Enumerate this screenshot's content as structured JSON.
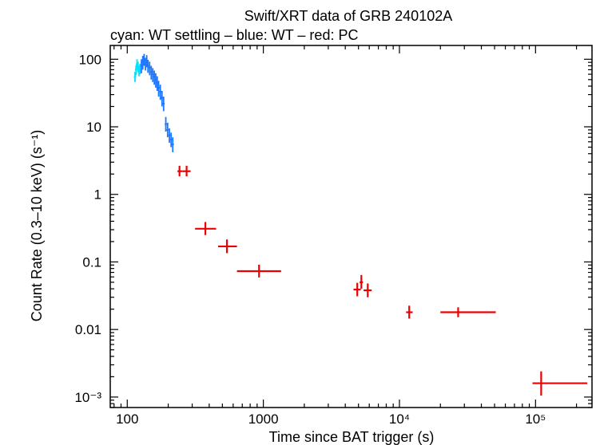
{
  "chart_data": {
    "type": "scatter",
    "title": "Swift/XRT data of GRB 240102A",
    "subtitle": "cyan: WT settling – blue: WT – red: PC",
    "xlabel": "Time since BAT trigger (s)",
    "ylabel": "Count Rate (0.3–10 keV) (s⁻¹)",
    "xscale": "log",
    "yscale": "log",
    "xlim": [
      75,
      260000
    ],
    "ylim": [
      0.0007,
      160
    ],
    "x_ticks": [
      {
        "value": 100,
        "label": "100"
      },
      {
        "value": 1000,
        "label": "1000"
      },
      {
        "value": 10000,
        "label": "10⁴"
      },
      {
        "value": 100000,
        "label": "10⁵"
      }
    ],
    "y_ticks": [
      {
        "value": 100,
        "label": "100"
      },
      {
        "value": 10,
        "label": "10"
      },
      {
        "value": 1,
        "label": "1"
      },
      {
        "value": 0.1,
        "label": "0.1"
      },
      {
        "value": 0.01,
        "label": "0.01"
      },
      {
        "value": 0.001,
        "label": "10⁻³"
      }
    ],
    "series": [
      {
        "color": "#00e0ff",
        "points": [
          {
            "x": 114,
            "y": 55,
            "ylo": 46,
            "yhi": 65
          },
          {
            "x": 116,
            "y": 70,
            "ylo": 58,
            "yhi": 82
          },
          {
            "x": 118,
            "y": 85,
            "ylo": 70,
            "yhi": 100
          },
          {
            "x": 120,
            "y": 78,
            "ylo": 64,
            "yhi": 92
          },
          {
            "x": 122,
            "y": 68,
            "ylo": 56,
            "yhi": 80
          },
          {
            "x": 124,
            "y": 72,
            "ylo": 60,
            "yhi": 86
          }
        ]
      },
      {
        "color": "#1e78ff",
        "points": [
          {
            "x": 127,
            "y": 80,
            "ylo": 62,
            "yhi": 100
          },
          {
            "x": 130,
            "y": 90,
            "ylo": 70,
            "yhi": 112
          },
          {
            "x": 133,
            "y": 100,
            "ylo": 80,
            "yhi": 120
          },
          {
            "x": 136,
            "y": 85,
            "ylo": 68,
            "yhi": 105
          },
          {
            "x": 139,
            "y": 95,
            "ylo": 76,
            "yhi": 115
          },
          {
            "x": 142,
            "y": 80,
            "ylo": 63,
            "yhi": 98
          },
          {
            "x": 146,
            "y": 75,
            "ylo": 58,
            "yhi": 92
          },
          {
            "x": 150,
            "y": 65,
            "ylo": 50,
            "yhi": 80
          },
          {
            "x": 154,
            "y": 60,
            "ylo": 46,
            "yhi": 74
          },
          {
            "x": 158,
            "y": 55,
            "ylo": 42,
            "yhi": 68
          },
          {
            "x": 162,
            "y": 50,
            "ylo": 38,
            "yhi": 62
          },
          {
            "x": 166,
            "y": 45,
            "ylo": 34,
            "yhi": 56
          },
          {
            "x": 170,
            "y": 38,
            "ylo": 28,
            "yhi": 48
          },
          {
            "x": 175,
            "y": 33,
            "ylo": 25,
            "yhi": 42
          },
          {
            "x": 180,
            "y": 27,
            "ylo": 20,
            "yhi": 34
          },
          {
            "x": 185,
            "y": 22,
            "ylo": 17,
            "yhi": 28
          },
          {
            "x": 192,
            "y": 11,
            "ylo": 8.5,
            "yhi": 14
          },
          {
            "x": 198,
            "y": 9,
            "ylo": 7,
            "yhi": 11.5
          },
          {
            "x": 204,
            "y": 7.5,
            "ylo": 5.8,
            "yhi": 9.5
          },
          {
            "x": 210,
            "y": 6.5,
            "ylo": 5,
            "yhi": 8.2
          },
          {
            "x": 216,
            "y": 5.5,
            "ylo": 4.2,
            "yhi": 7
          }
        ]
      },
      {
        "color": "#ee0000",
        "points": [
          {
            "x": 242,
            "y": 2.2,
            "xlo": 234,
            "xhi": 256,
            "ylo": 1.85,
            "yhi": 2.65
          },
          {
            "x": 273,
            "y": 2.2,
            "xlo": 256,
            "xhi": 292,
            "ylo": 1.85,
            "yhi": 2.65
          },
          {
            "x": 375,
            "y": 0.31,
            "xlo": 315,
            "xhi": 450,
            "ylo": 0.25,
            "yhi": 0.39
          },
          {
            "x": 540,
            "y": 0.17,
            "xlo": 465,
            "xhi": 640,
            "ylo": 0.135,
            "yhi": 0.215
          },
          {
            "x": 930,
            "y": 0.073,
            "xlo": 640,
            "xhi": 1350,
            "ylo": 0.059,
            "yhi": 0.091
          },
          {
            "x": 4900,
            "y": 0.039,
            "xlo": 4600,
            "xhi": 5200,
            "ylo": 0.031,
            "yhi": 0.049
          },
          {
            "x": 5250,
            "y": 0.05,
            "xlo": 5100,
            "xhi": 5400,
            "ylo": 0.04,
            "yhi": 0.064
          },
          {
            "x": 5850,
            "y": 0.038,
            "xlo": 5450,
            "xhi": 6250,
            "ylo": 0.03,
            "yhi": 0.048
          },
          {
            "x": 11800,
            "y": 0.018,
            "xlo": 11200,
            "xhi": 12500,
            "ylo": 0.0145,
            "yhi": 0.0225
          },
          {
            "x": 27000,
            "y": 0.018,
            "xlo": 20000,
            "xhi": 51000,
            "ylo": 0.0152,
            "yhi": 0.0213
          },
          {
            "x": 110000,
            "y": 0.0016,
            "xlo": 95000,
            "xhi": 240000,
            "ylo": 0.00105,
            "yhi": 0.0024
          }
        ]
      }
    ]
  }
}
